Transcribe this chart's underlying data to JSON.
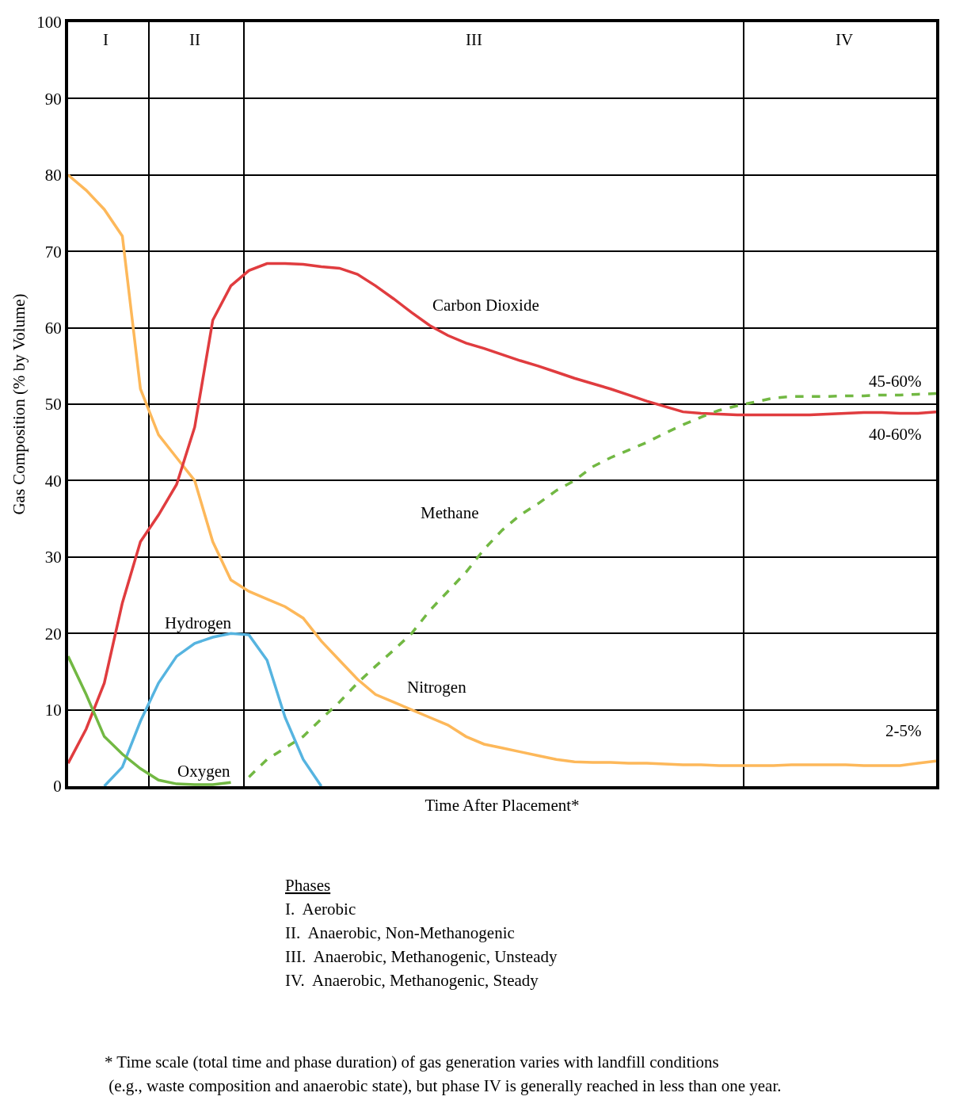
{
  "chart_data": {
    "type": "line",
    "xlabel": "Time After Placement*",
    "ylabel": "Gas Composition (% by Volume)",
    "categories": [
      null,
      null,
      null,
      null,
      null,
      null,
      null,
      null,
      null,
      null,
      null,
      null,
      null,
      null,
      null,
      null,
      null,
      null,
      null,
      null,
      null,
      null,
      null,
      null,
      null,
      null,
      null,
      null,
      null,
      null,
      null,
      null,
      null,
      null,
      null,
      null,
      null,
      null,
      null,
      null,
      null,
      null,
      null,
      null,
      null,
      null,
      null,
      null,
      null
    ],
    "series": [
      {
        "name": "Nitrogen",
        "color": "#fdb85a",
        "values": [
          80,
          78,
          75.5,
          72,
          52,
          46,
          43,
          40,
          32,
          27,
          25.5,
          24.5,
          23.5,
          22,
          19,
          16.5,
          14,
          12,
          11,
          10,
          9,
          8,
          6.5,
          5.5,
          5,
          4.5,
          4,
          3.5,
          3.2,
          3.1,
          3.1,
          3,
          3,
          2.9,
          2.8,
          2.8,
          2.7,
          2.7,
          2.7,
          2.7,
          2.8,
          2.8,
          2.8,
          2.8,
          2.7,
          2.7,
          2.7,
          3,
          3.3
        ]
      },
      {
        "name": "Carbon Dioxide",
        "color": "#e03c3f",
        "values": [
          3,
          7.5,
          13.5,
          24,
          32,
          35.5,
          39.5,
          47,
          61,
          65.5,
          67.5,
          68.4,
          68.4,
          68.3,
          68,
          67.8,
          67,
          65.5,
          63.8,
          62,
          60.3,
          59,
          58,
          57.3,
          56.5,
          55.7,
          55,
          54.2,
          53.4,
          52.7,
          52,
          51.2,
          50.4,
          49.7,
          49,
          48.8,
          48.7,
          48.6,
          48.6,
          48.6,
          48.6,
          48.6,
          48.7,
          48.8,
          48.9,
          48.9,
          48.8,
          48.8,
          49
        ]
      },
      {
        "name": "Methane",
        "color": "#72b843",
        "line_style": "dashed",
        "values": [
          null,
          null,
          null,
          null,
          null,
          null,
          null,
          null,
          null,
          null,
          1.2,
          3.5,
          5,
          6.5,
          8.8,
          11,
          13.5,
          15.7,
          17.8,
          20,
          23,
          25.5,
          28,
          31,
          33.5,
          35.5,
          37,
          38.7,
          40,
          41.8,
          43,
          44,
          45,
          46.2,
          47.3,
          48.3,
          49.2,
          49.8,
          50.3,
          50.8,
          51,
          51,
          51,
          51.1,
          51.1,
          51.2,
          51.2,
          51.3,
          51.4
        ]
      },
      {
        "name": "Hydrogen",
        "color": "#56b4e0",
        "values": [
          null,
          null,
          0,
          2.5,
          8.5,
          13.5,
          17,
          18.7,
          19.5,
          20,
          19.8,
          16.5,
          9,
          3.5,
          0,
          null,
          null,
          null,
          null,
          null,
          null,
          null,
          null,
          null,
          null,
          null,
          null,
          null,
          null,
          null,
          null,
          null,
          null,
          null,
          null,
          null,
          null,
          null,
          null,
          null,
          null,
          null,
          null,
          null,
          null,
          null,
          null,
          null,
          null
        ]
      },
      {
        "name": "Oxygen",
        "color": "#72b843",
        "values": [
          17,
          12,
          6.5,
          4.2,
          2.3,
          0.8,
          0.3,
          0.2,
          0.2,
          0.5,
          null,
          null,
          null,
          null,
          null,
          null,
          null,
          null,
          null,
          null,
          null,
          null,
          null,
          null,
          null,
          null,
          null,
          null,
          null,
          null,
          null,
          null,
          null,
          null,
          null,
          null,
          null,
          null,
          null,
          null,
          null,
          null,
          null,
          null,
          null,
          null,
          null,
          null,
          null
        ]
      }
    ],
    "ylim": [
      0,
      100
    ],
    "yticks": [
      0,
      10,
      20,
      30,
      40,
      50,
      60,
      70,
      80,
      90,
      100
    ],
    "grid": "y",
    "marker": "none",
    "line_style": "solid",
    "annotations": [
      "I",
      "II",
      "III",
      "IV",
      {
        "text": "45-60%",
        "y": 51.4
      },
      {
        "text": "40-60%",
        "y": 49
      },
      {
        "text": "2-5%",
        "y": 3.3
      },
      "Phases",
      "I.  Aerobic",
      "II.  Anaerobic, Non-Methanogenic",
      "III.  Anaerobic, Methanogenic, Unsteady",
      "IV.  Anaerobic, Methanogenic, Steady",
      "* Time scale (total time and phase duration) of gas generation varies with landfill conditions",
      " (e.g., waste composition and anaerobic state), but phase IV is generally reached in less than one year."
    ]
  }
}
